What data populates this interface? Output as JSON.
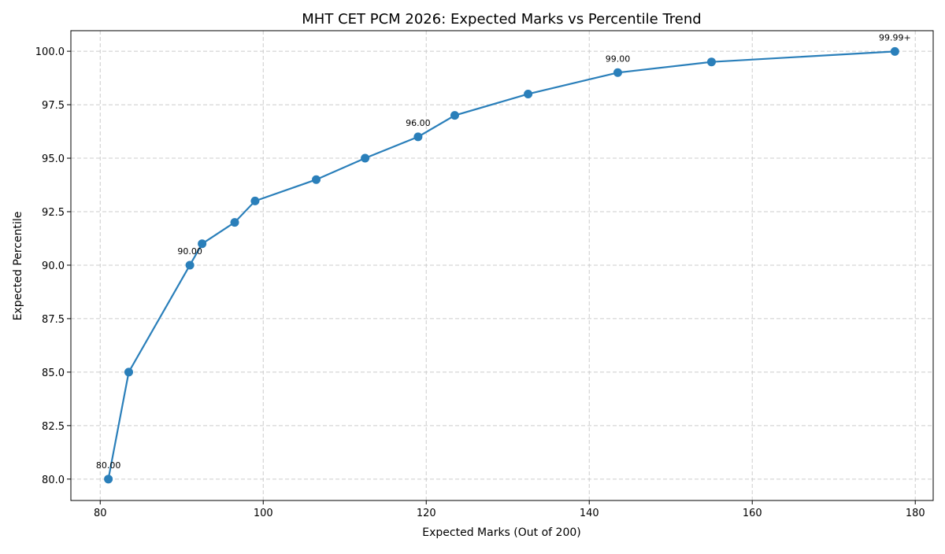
{
  "chart_data": {
    "type": "line",
    "title": "MHT CET PCM 2026: Expected Marks vs Percentile Trend",
    "xlabel": "Expected Marks (Out of 200)",
    "ylabel": "Expected Percentile",
    "xlim": [
      76.4,
      182.2
    ],
    "ylim": [
      79.0,
      100.96
    ],
    "xticks": [
      80,
      100,
      120,
      140,
      160,
      180
    ],
    "yticks": [
      "80.0",
      "82.5",
      "85.0",
      "87.5",
      "90.0",
      "92.5",
      "95.0",
      "97.5",
      "100.0"
    ],
    "grid": true,
    "color": "#2a7fba",
    "x": [
      81,
      83.5,
      91,
      92.5,
      96.5,
      99,
      106.5,
      112.5,
      119,
      123.5,
      132.5,
      143.5,
      155,
      177.5
    ],
    "y": [
      80,
      85,
      90,
      91,
      92,
      93,
      94,
      95,
      96,
      97,
      98,
      99,
      99.5,
      99.99
    ],
    "annotations": [
      {
        "x": 81,
        "y": 80,
        "text": "80.00"
      },
      {
        "x": 91,
        "y": 90,
        "text": "90.00"
      },
      {
        "x": 119,
        "y": 96,
        "text": "96.00"
      },
      {
        "x": 143.5,
        "y": 99,
        "text": "99.00"
      },
      {
        "x": 177.5,
        "y": 99.99,
        "text": "99.99+"
      }
    ]
  }
}
